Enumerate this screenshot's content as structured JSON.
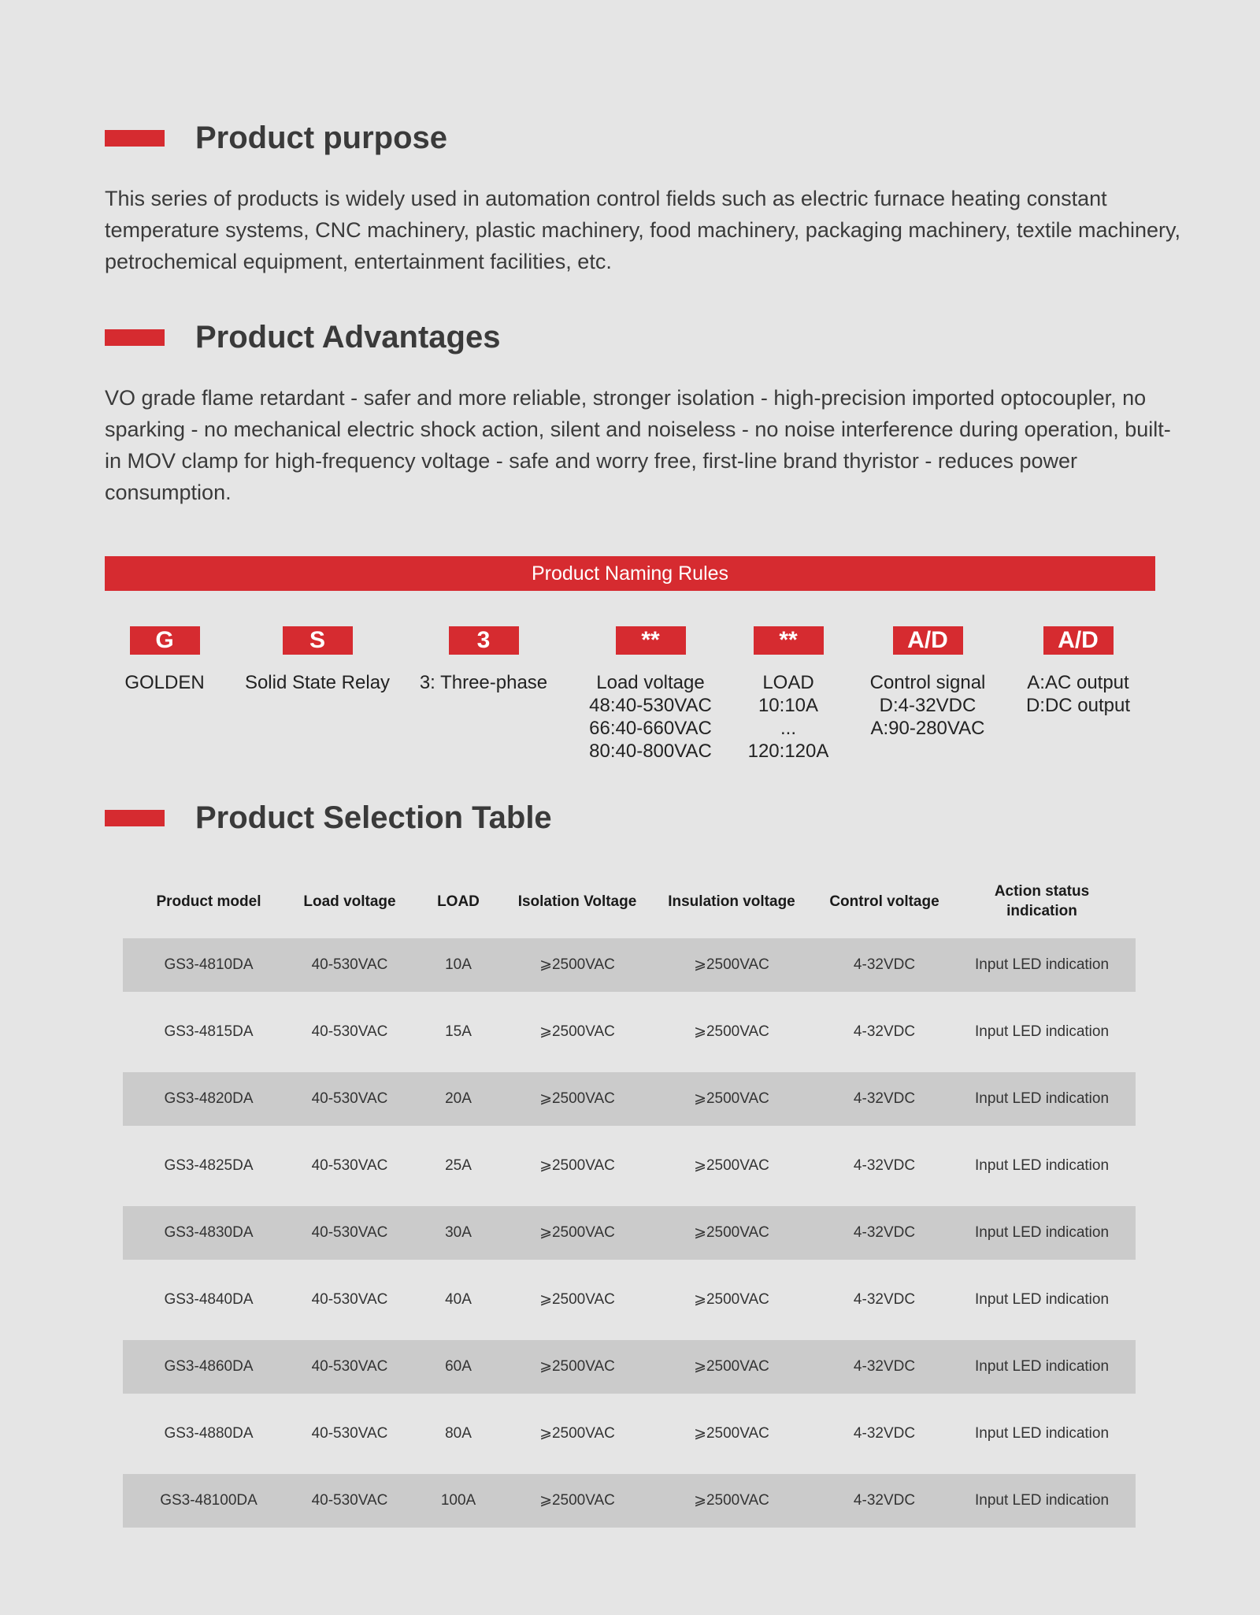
{
  "sections": [
    {
      "title": "Product purpose",
      "text": "This series of products is widely used in automation control fields such as electric furnace heating constant temperature systems, CNC machinery, plastic machinery, food machinery, packaging machinery, textile machinery, petrochemical equipment, entertainment facilities, etc."
    },
    {
      "title": "Product Advantages",
      "text": "VO grade flame retardant - safer and more reliable, stronger isolation - high-precision imported optocoupler, no sparking - no mechanical electric shock action, silent and noiseless - no noise interference during operation, built-in MOV clamp for high-frequency voltage - safe and worry free, first-line brand thyristor - reduces power consumption."
    }
  ],
  "naming": {
    "title": "Product Naming Rules",
    "items": [
      {
        "code": "G",
        "lines": [
          "GOLDEN"
        ]
      },
      {
        "code": "S",
        "lines": [
          "Solid State Relay"
        ]
      },
      {
        "code": "3",
        "lines": [
          "3: Three-phase"
        ]
      },
      {
        "code": "**",
        "lines": [
          "Load voltage",
          "48:40-530VAC",
          "66:40-660VAC",
          "80:40-800VAC"
        ]
      },
      {
        "code": "**",
        "lines": [
          "LOAD",
          "10:10A",
          "...",
          "120:120A"
        ]
      },
      {
        "code": "A/D",
        "lines": [
          "Control signal",
          "D:4-32VDC",
          "A:90-280VAC"
        ]
      },
      {
        "code": "A/D",
        "lines": [
          "A:AC output",
          "D:DC output"
        ]
      }
    ]
  },
  "selection": {
    "title": "Product Selection Table",
    "columns": [
      "Product model",
      "Load voltage",
      "LOAD",
      "Isolation Voltage",
      "Insulation voltage",
      "Control voltage",
      "Action status indication"
    ],
    "rows": [
      [
        "GS3-4810DA",
        "40-530VAC",
        "10A",
        "⩾2500VAC",
        "⩾2500VAC",
        "4-32VDC",
        "Input LED indication"
      ],
      [
        "GS3-4815DA",
        "40-530VAC",
        "15A",
        "⩾2500VAC",
        "⩾2500VAC",
        "4-32VDC",
        "Input LED indication"
      ],
      [
        "GS3-4820DA",
        "40-530VAC",
        "20A",
        "⩾2500VAC",
        "⩾2500VAC",
        "4-32VDC",
        "Input LED indication"
      ],
      [
        "GS3-4825DA",
        "40-530VAC",
        "25A",
        "⩾2500VAC",
        "⩾2500VAC",
        "4-32VDC",
        "Input LED indication"
      ],
      [
        "GS3-4830DA",
        "40-530VAC",
        "30A",
        "⩾2500VAC",
        "⩾2500VAC",
        "4-32VDC",
        "Input LED indication"
      ],
      [
        "GS3-4840DA",
        "40-530VAC",
        "40A",
        "⩾2500VAC",
        "⩾2500VAC",
        "4-32VDC",
        "Input LED indication"
      ],
      [
        "GS3-4860DA",
        "40-530VAC",
        "60A",
        "⩾2500VAC",
        "⩾2500VAC",
        "4-32VDC",
        "Input LED indication"
      ],
      [
        "GS3-4880DA",
        "40-530VAC",
        "80A",
        "⩾2500VAC",
        "⩾2500VAC",
        "4-32VDC",
        "Input LED indication"
      ],
      [
        "GS3-48100DA",
        "40-530VAC",
        "100A",
        "⩾2500VAC",
        "⩾2500VAC",
        "4-32VDC",
        "Input LED indication"
      ]
    ]
  }
}
